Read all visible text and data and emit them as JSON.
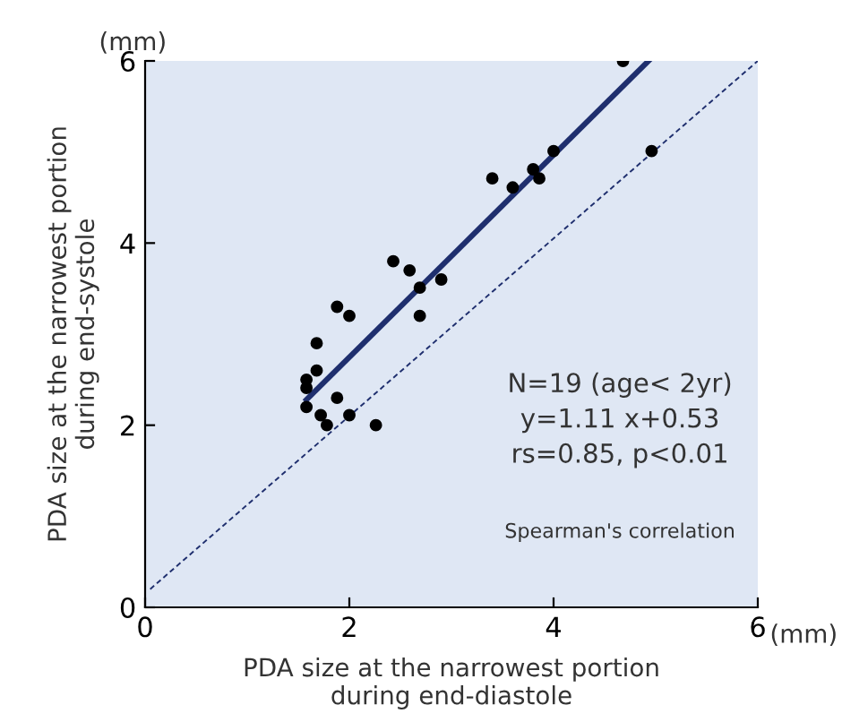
{
  "chart_data": {
    "type": "scatter",
    "xlabel": "PDA size at the narrowest portion\nduring end-diastole",
    "ylabel": "PDA size at the narrowest portion\nduring end-systole",
    "xlim": [
      0,
      6
    ],
    "ylim": [
      0,
      6
    ],
    "xticks": [
      0,
      2,
      4,
      6
    ],
    "yticks": [
      0,
      2,
      4,
      6
    ],
    "grid": false,
    "legend": false,
    "marker": "circle",
    "annotations": [
      "(mm)",
      "(mm)",
      "N=19 (age< 2yr)\ny=1.11 x+0.53\nrs=0.85, p<0.01",
      "Spearman's correlation"
    ],
    "series": [
      {
        "color": "#000000",
        "x": [
          1.58,
          1.58,
          1.58,
          1.68,
          1.68,
          1.72,
          1.78,
          1.88,
          1.88,
          2.0,
          2.0,
          2.26,
          2.43,
          2.59,
          2.69,
          2.69,
          2.9,
          3.4,
          3.6,
          3.8,
          3.86,
          4.0,
          4.68,
          4.96
        ],
        "values": [
          2.5,
          2.41,
          2.2,
          2.6,
          2.9,
          2.11,
          2.0,
          3.3,
          2.3,
          3.2,
          2.11,
          2.0,
          3.8,
          3.7,
          3.51,
          3.2,
          3.6,
          4.71,
          4.61,
          4.81,
          4.71,
          5.01,
          6.0,
          5.01
        ]
      },
      {
        "type": "line",
        "color": "#1f2f6e",
        "line_style": "solid",
        "marker": "none",
        "x": [
          1.58,
          4.93
        ],
        "values": [
          2.28,
          6.0
        ]
      },
      {
        "type": "line",
        "color": "#1f2f6e",
        "line_style": "dashed",
        "marker": "none",
        "x": [
          0.05,
          6.0
        ],
        "values": [
          0.2,
          6.0
        ]
      }
    ]
  }
}
